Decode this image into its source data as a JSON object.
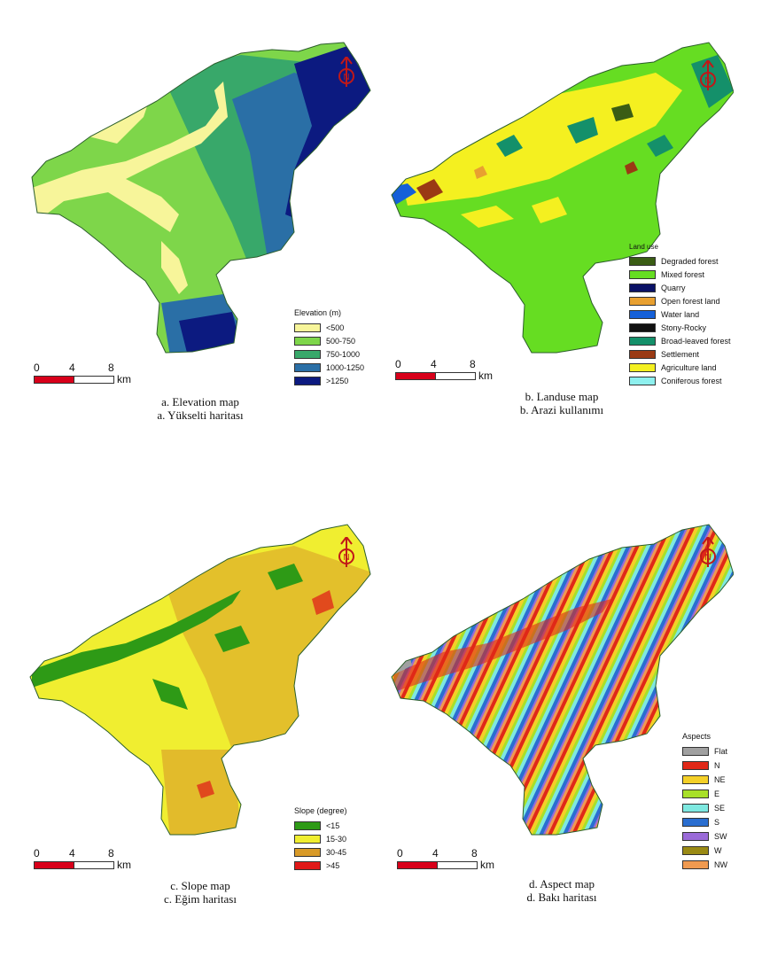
{
  "maps": [
    {
      "id": "elevation",
      "caption_en": "a. Elevation map",
      "caption_tr": "a. Yükselti haritası",
      "legend_title": "Elevation (m)",
      "legend": [
        {
          "label": "<500",
          "color": "#f7f59a"
        },
        {
          "label": "500-750",
          "color": "#7ed64a"
        },
        {
          "label": "750-1000",
          "color": "#38a86a"
        },
        {
          "label": "1000-1250",
          "color": "#2a6fa6"
        },
        {
          "label": ">1250",
          "color": "#0c1a80"
        }
      ]
    },
    {
      "id": "landuse",
      "caption_en": "b. Landuse map",
      "caption_tr": "b. Arazi kullanımı",
      "legend_title": "Land use",
      "legend": [
        {
          "label": "Degraded forest",
          "color": "#3a5d14"
        },
        {
          "label": "Mixed forest",
          "color": "#66dd22"
        },
        {
          "label": "Quarry",
          "color": "#0a1266"
        },
        {
          "label": "Open forest land",
          "color": "#e8a030"
        },
        {
          "label": "Water land",
          "color": "#1560d8"
        },
        {
          "label": "Stony-Rocky",
          "color": "#111111"
        },
        {
          "label": "Broad-leaved forest",
          "color": "#14906a"
        },
        {
          "label": "Settlement",
          "color": "#9a3a14"
        },
        {
          "label": "Agriculture land",
          "color": "#f4f020"
        },
        {
          "label": "Coniferous forest",
          "color": "#8ef0ee"
        }
      ]
    },
    {
      "id": "slope",
      "caption_en": "c. Slope map",
      "caption_tr": "c. Eğim haritası",
      "legend_title": "Slope (degree)",
      "legend": [
        {
          "label": "<15",
          "color": "#2e9a16"
        },
        {
          "label": "15-30",
          "color": "#f0ee30"
        },
        {
          "label": "30-45",
          "color": "#d89a28"
        },
        {
          "label": ">45",
          "color": "#e01818"
        }
      ]
    },
    {
      "id": "aspect",
      "caption_en": "d. Aspect map",
      "caption_tr": "d. Bakı haritası",
      "legend_title": "Aspects",
      "legend": [
        {
          "label": "Flat",
          "color": "#a0a0a0"
        },
        {
          "label": "N",
          "color": "#e02818"
        },
        {
          "label": "NE",
          "color": "#f4d028"
        },
        {
          "label": "E",
          "color": "#a8e028"
        },
        {
          "label": "SE",
          "color": "#7ee8e0"
        },
        {
          "label": "S",
          "color": "#2a6ed0"
        },
        {
          "label": "SW",
          "color": "#9a6ad8"
        },
        {
          "label": "W",
          "color": "#9a8a14"
        },
        {
          "label": "NW",
          "color": "#f09a50"
        }
      ]
    }
  ],
  "scale": {
    "ticks": [
      "0",
      "4",
      "8"
    ],
    "unit": "km"
  },
  "north_label": "N"
}
